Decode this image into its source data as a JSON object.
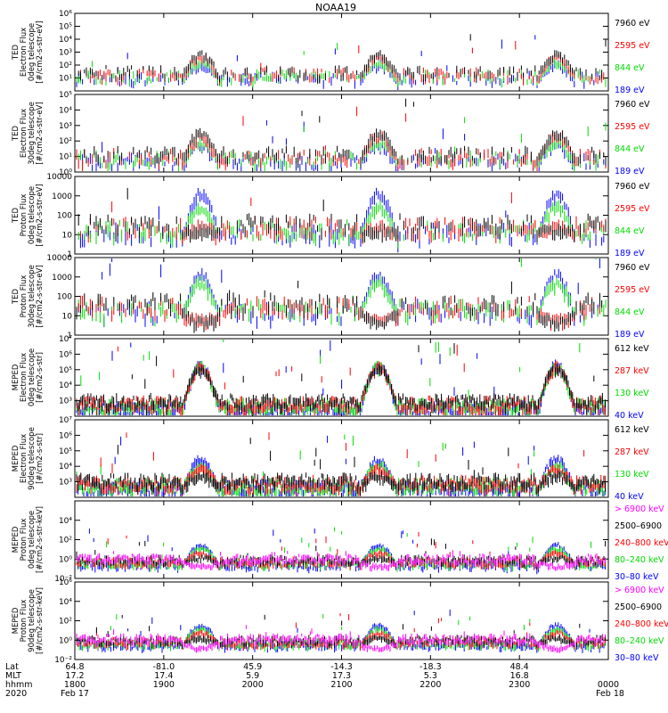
{
  "title": "NOAA19",
  "colors": {
    "black": "#000000",
    "red": "#ff0000",
    "green": "#00dd00",
    "blue": "#0000ff",
    "magenta": "#ff00ff"
  },
  "chart_data": [
    {
      "type": "line",
      "id": "ted-e-0",
      "ylabel": [
        "TED",
        "Electron Flux",
        "0deg telescope",
        "[#/cm2-s-str-eV]"
      ],
      "ylog": true,
      "ylim": [
        1,
        1000000
      ],
      "yticks": [
        {
          "label": "10¹",
          "e": 1
        },
        {
          "label": "10²",
          "e": 2
        },
        {
          "label": "10³",
          "e": 3
        },
        {
          "label": "10⁴",
          "e": 4
        },
        {
          "label": "10⁵",
          "e": 5
        },
        {
          "label": "10⁶",
          "e": 6
        }
      ],
      "legend": [
        {
          "text": "7960 eV",
          "color": "black"
        },
        {
          "text": "2595 eV",
          "color": "red"
        },
        {
          "text": "844 eV",
          "color": "green"
        },
        {
          "text": "189 eV",
          "color": "blue"
        }
      ],
      "peak_e": [
        3.0,
        2.8,
        2.4,
        2.2
      ],
      "base_e": 1.2
    },
    {
      "type": "line",
      "id": "ted-e-30",
      "ylabel": [
        "TED",
        "Electron Flux",
        "30deg telescope",
        "[#/cm2-s-str-eV]"
      ],
      "ylog": true,
      "ylim": [
        1,
        100000
      ],
      "yticks": [
        {
          "label": "10⁰",
          "e": 0
        },
        {
          "label": "10¹",
          "e": 1
        },
        {
          "label": "10²",
          "e": 2
        },
        {
          "label": "10³",
          "e": 3
        },
        {
          "label": "10⁴",
          "e": 4
        },
        {
          "label": "10⁵",
          "e": 5
        }
      ],
      "legend": [
        {
          "text": "7960 eV",
          "color": "black"
        },
        {
          "text": "2595 eV",
          "color": "red"
        },
        {
          "text": "844 eV",
          "color": "green"
        },
        {
          "text": "189 eV",
          "color": "blue"
        }
      ],
      "peak_e": [
        2.7,
        2.5,
        2.1,
        1.9
      ],
      "base_e": 0.9
    },
    {
      "type": "line",
      "id": "ted-p-0",
      "ylabel": [
        "TED",
        "Proton Flux",
        "0deg telescope",
        "[#/cm2-s-str-eV]"
      ],
      "ylog": true,
      "ylim": [
        1,
        10000
      ],
      "yticks": [
        {
          "label": "1",
          "e": 0
        },
        {
          "label": "10",
          "e": 1
        },
        {
          "label": "100",
          "e": 2
        },
        {
          "label": "1000",
          "e": 3
        },
        {
          "label": "10000",
          "e": 4
        }
      ],
      "legend": [
        {
          "text": "7960 eV",
          "color": "black"
        },
        {
          "text": "2595 eV",
          "color": "red"
        },
        {
          "text": "844 eV",
          "color": "green"
        },
        {
          "text": "189 eV",
          "color": "blue"
        }
      ],
      "peak_e": [
        1.4,
        1.6,
        2.6,
        3.3
      ],
      "base_e": 1.3
    },
    {
      "type": "line",
      "id": "ted-p-30",
      "ylabel": [
        "TED",
        "Proton Flux",
        "30deg telescope",
        "[#/cm2-s-str-eV]"
      ],
      "ylog": true,
      "ylim": [
        1,
        10000
      ],
      "yticks": [
        {
          "label": "1",
          "e": 0
        },
        {
          "label": "10",
          "e": 1
        },
        {
          "label": "100",
          "e": 2
        },
        {
          "label": "1000",
          "e": 3
        },
        {
          "label": "10000",
          "e": 4
        }
      ],
      "legend": [
        {
          "text": "7960 eV",
          "color": "black"
        },
        {
          "text": "2595 eV",
          "color": "red"
        },
        {
          "text": "844 eV",
          "color": "green"
        },
        {
          "text": "189 eV",
          "color": "blue"
        }
      ],
      "peak_e": [
        0.8,
        1.0,
        2.9,
        3.3
      ],
      "base_e": 1.4
    },
    {
      "type": "line",
      "id": "meped-e-0",
      "ylabel": [
        "MEPED",
        "Electron Flux",
        "0deg telescope",
        "[#/cm2-s-str]"
      ],
      "ylog": true,
      "ylim": [
        100,
        10000000
      ],
      "yticks": [
        {
          "label": "10³",
          "e": 3
        },
        {
          "label": "10⁴",
          "e": 4
        },
        {
          "label": "10⁵",
          "e": 5
        },
        {
          "label": "10⁶",
          "e": 6
        },
        {
          "label": "10⁷",
          "e": 7
        }
      ],
      "legend": [
        {
          "text": "612 keV",
          "color": "black"
        },
        {
          "text": "287 keV",
          "color": "red"
        },
        {
          "text": "130 keV",
          "color": "green"
        },
        {
          "text": "40 keV",
          "color": "blue"
        }
      ],
      "peak_e": [
        5.3,
        5.4,
        5.4,
        5.5
      ],
      "base_e": 2.7
    },
    {
      "type": "line",
      "id": "meped-e-90",
      "ylabel": [
        "MEPED",
        "Electron Flux",
        "90deg telescope",
        "[#/cm2-s-str]"
      ],
      "ylog": true,
      "ylim": [
        100,
        10000000
      ],
      "yticks": [
        {
          "label": "10³",
          "e": 3
        },
        {
          "label": "10⁴",
          "e": 4
        },
        {
          "label": "10⁵",
          "e": 5
        },
        {
          "label": "10⁶",
          "e": 6
        },
        {
          "label": "10⁷",
          "e": 7
        }
      ],
      "legend": [
        {
          "text": "612 keV",
          "color": "black"
        },
        {
          "text": "287 keV",
          "color": "red"
        },
        {
          "text": "130 keV",
          "color": "green"
        },
        {
          "text": "40 keV",
          "color": "blue"
        }
      ],
      "peak_e": [
        3.6,
        4.0,
        4.2,
        4.6
      ],
      "base_e": 2.8
    },
    {
      "type": "line",
      "id": "meped-p-0",
      "ylabel": [
        "MEPED",
        "Proton Flux",
        "0deg telescope",
        "[#/cm2-s-str-keV]"
      ],
      "ylog": true,
      "ylim": [
        0.01,
        1000000
      ],
      "yticks": [
        {
          "label": "10⁻²",
          "e": -2
        },
        {
          "label": "10⁰",
          "e": 0
        },
        {
          "label": "10²",
          "e": 2
        },
        {
          "label": "10⁴",
          "e": 4
        }
      ],
      "legend": [
        {
          "text": "> 6900 keV",
          "color": "magenta"
        },
        {
          "text": "2500–6900",
          "color": "black"
        },
        {
          "text": "240–800 keV",
          "color": "red"
        },
        {
          "text": "80–240 keV",
          "color": "green"
        },
        {
          "text": "30–80 keV",
          "color": "blue"
        }
      ],
      "peak_e": [
        -0.6,
        0.3,
        0.8,
        1.2,
        1.6
      ],
      "base_e": -0.2
    },
    {
      "type": "line",
      "id": "meped-p-90",
      "ylabel": [
        "MEPED",
        "Proton Flux",
        "90deg telescope",
        "[#/cm2-s-str-keV]"
      ],
      "ylog": true,
      "ylim": [
        0.01,
        1000000
      ],
      "yticks": [
        {
          "label": "10⁻²",
          "e": -2
        },
        {
          "label": "10⁰",
          "e": 0
        },
        {
          "label": "10²",
          "e": 2
        },
        {
          "label": "10⁴",
          "e": 4
        },
        {
          "label": "10⁶",
          "e": 6
        }
      ],
      "legend": [
        {
          "text": "> 6900 keV",
          "color": "magenta"
        },
        {
          "text": "2500–6900",
          "color": "black"
        },
        {
          "text": "240–800 keV",
          "color": "red"
        },
        {
          "text": "80–240 keV",
          "color": "green"
        },
        {
          "text": "30–80 keV",
          "color": "blue"
        }
      ],
      "peak_e": [
        -0.7,
        0.4,
        0.9,
        1.3,
        1.7
      ],
      "base_e": -0.1
    }
  ],
  "xaxis": {
    "row_labels": [
      "Lat",
      "MLT",
      "hhmm",
      "2020"
    ],
    "ticks": [
      {
        "lat": "64.8",
        "mlt": "17.2",
        "hhmm": "1800",
        "date": "Feb 17"
      },
      {
        "lat": "-81.0",
        "mlt": "17.4",
        "hhmm": "1900",
        "date": ""
      },
      {
        "lat": "45.9",
        "mlt": "5.9",
        "hhmm": "2000",
        "date": ""
      },
      {
        "lat": "-14.3",
        "mlt": "17.3",
        "hhmm": "2100",
        "date": ""
      },
      {
        "lat": "-18.3",
        "mlt": "5.3",
        "hhmm": "2200",
        "date": ""
      },
      {
        "lat": "48.4",
        "mlt": "16.8",
        "hhmm": "2300",
        "date": ""
      },
      {
        "lat": "",
        "mlt": "",
        "hhmm": "0000",
        "date": "Feb 18"
      }
    ]
  },
  "passes_hhmm": [
    "1925",
    "2125",
    "2325"
  ]
}
